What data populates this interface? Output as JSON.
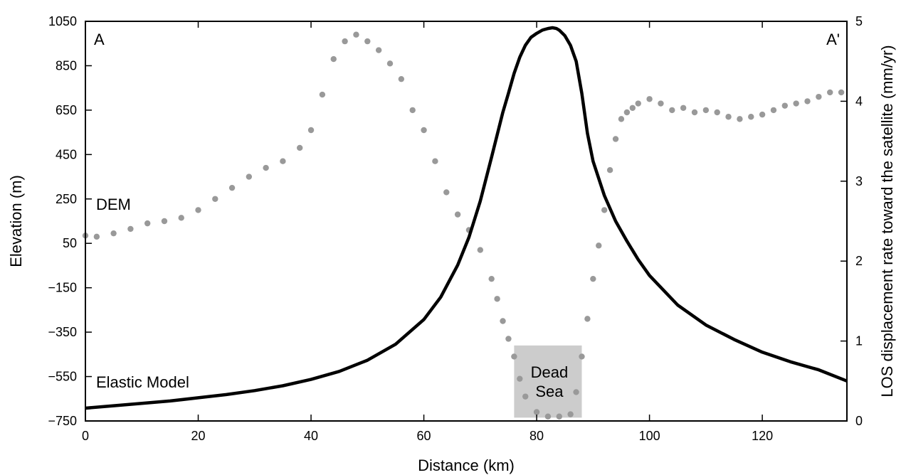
{
  "chart_data": {
    "type": "scatter",
    "title": "",
    "xlabel": "Distance (km)",
    "ylabel_left": "Elevation (m)",
    "ylabel_right": "LOS displacement rate toward the satellite (mm/yr)",
    "xlim": [
      0,
      135
    ],
    "ylim_left": [
      -750,
      1050
    ],
    "ylim_right": [
      0,
      5
    ],
    "x_ticks": [
      0,
      20,
      40,
      60,
      80,
      100,
      120
    ],
    "x_tick_labels": [
      "0",
      "20",
      "40",
      "60",
      "80",
      "100",
      "120"
    ],
    "y_left_ticks": [
      -750,
      -550,
      -350,
      -150,
      50,
      250,
      450,
      650,
      850,
      1050
    ],
    "y_left_tick_labels": [
      "−750",
      "−550",
      "−350",
      "−150",
      "50",
      "250",
      "450",
      "650",
      "850",
      "1050"
    ],
    "y_right_ticks": [
      0,
      1,
      2,
      3,
      4,
      5
    ],
    "y_right_tick_labels": [
      "0",
      "1",
      "2",
      "3",
      "4",
      "5"
    ],
    "grid": false,
    "legend": "none",
    "colors": {
      "dem": "#999999",
      "model": "#000000",
      "sea": "#cccccc"
    },
    "annotations": {
      "profile_start": "A",
      "profile_end": "A'",
      "dem_label": "DEM",
      "model_label": "Elastic Model",
      "sea_label_line1": "Dead",
      "sea_label_line2": "Sea"
    },
    "dead_sea": {
      "x_range": [
        76,
        88
      ],
      "surface_elevation": -410,
      "floor_elevation": -735
    },
    "series": [
      {
        "kind": "scatter",
        "axis": "left",
        "x": [
          0,
          2,
          5,
          8,
          11,
          14,
          17,
          20,
          23,
          26,
          29,
          32,
          35,
          38,
          40,
          42,
          44,
          46,
          48,
          50,
          52,
          54,
          56,
          58,
          60,
          62,
          64,
          66,
          68,
          70,
          72,
          73,
          74,
          75,
          76,
          77,
          78,
          80,
          82,
          84,
          86,
          87,
          88,
          89,
          90,
          91,
          92,
          93,
          94,
          95,
          96,
          97,
          98,
          100,
          102,
          104,
          106,
          108,
          110,
          112,
          114,
          116,
          118,
          120,
          122,
          124,
          126,
          128,
          130,
          132,
          134
        ],
        "y": [
          85,
          80,
          95,
          115,
          140,
          150,
          165,
          200,
          250,
          300,
          350,
          390,
          420,
          480,
          560,
          720,
          880,
          960,
          990,
          960,
          920,
          860,
          790,
          650,
          560,
          420,
          280,
          180,
          110,
          20,
          -110,
          -200,
          -300,
          -380,
          -460,
          -560,
          -640,
          -710,
          -730,
          -730,
          -720,
          -620,
          -460,
          -290,
          -110,
          40,
          200,
          380,
          520,
          610,
          640,
          660,
          680,
          700,
          680,
          650,
          660,
          640,
          650,
          640,
          620,
          610,
          620,
          630,
          650,
          670,
          680,
          690,
          710,
          730,
          730
        ]
      },
      {
        "kind": "line",
        "axis": "right",
        "x": [
          0,
          5,
          10,
          15,
          20,
          25,
          30,
          35,
          40,
          45,
          50,
          55,
          60,
          63,
          66,
          68,
          70,
          72,
          74,
          75,
          76,
          77,
          78,
          79,
          80,
          81,
          82,
          82.8,
          83.5,
          84,
          85,
          86,
          87,
          88,
          89,
          90,
          92,
          94,
          96,
          98,
          100,
          105,
          110,
          115,
          120,
          125,
          130,
          135
        ],
        "y": [
          0.16,
          0.19,
          0.22,
          0.25,
          0.29,
          0.33,
          0.38,
          0.44,
          0.52,
          0.62,
          0.76,
          0.96,
          1.27,
          1.55,
          1.95,
          2.3,
          2.75,
          3.3,
          3.86,
          4.1,
          4.35,
          4.55,
          4.7,
          4.8,
          4.85,
          4.89,
          4.91,
          4.92,
          4.91,
          4.89,
          4.82,
          4.7,
          4.5,
          4.1,
          3.6,
          3.25,
          2.82,
          2.5,
          2.25,
          2.02,
          1.82,
          1.45,
          1.2,
          1.02,
          0.86,
          0.74,
          0.64,
          0.5
        ]
      }
    ]
  }
}
